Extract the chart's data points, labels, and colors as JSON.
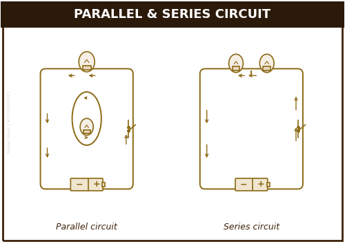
{
  "title": "PARALLEL & SERIES CIRCUIT",
  "title_bg": "#2b1a0a",
  "title_color": "#ffffff",
  "bg_color": "#ffffff",
  "border_color": "#3d2008",
  "line_color": "#8B6914",
  "label_parallel": "Parallel circuit",
  "label_series": "Series circuit",
  "label_color": "#3d2008",
  "figsize": [
    5.0,
    3.53
  ],
  "dpi": 100
}
